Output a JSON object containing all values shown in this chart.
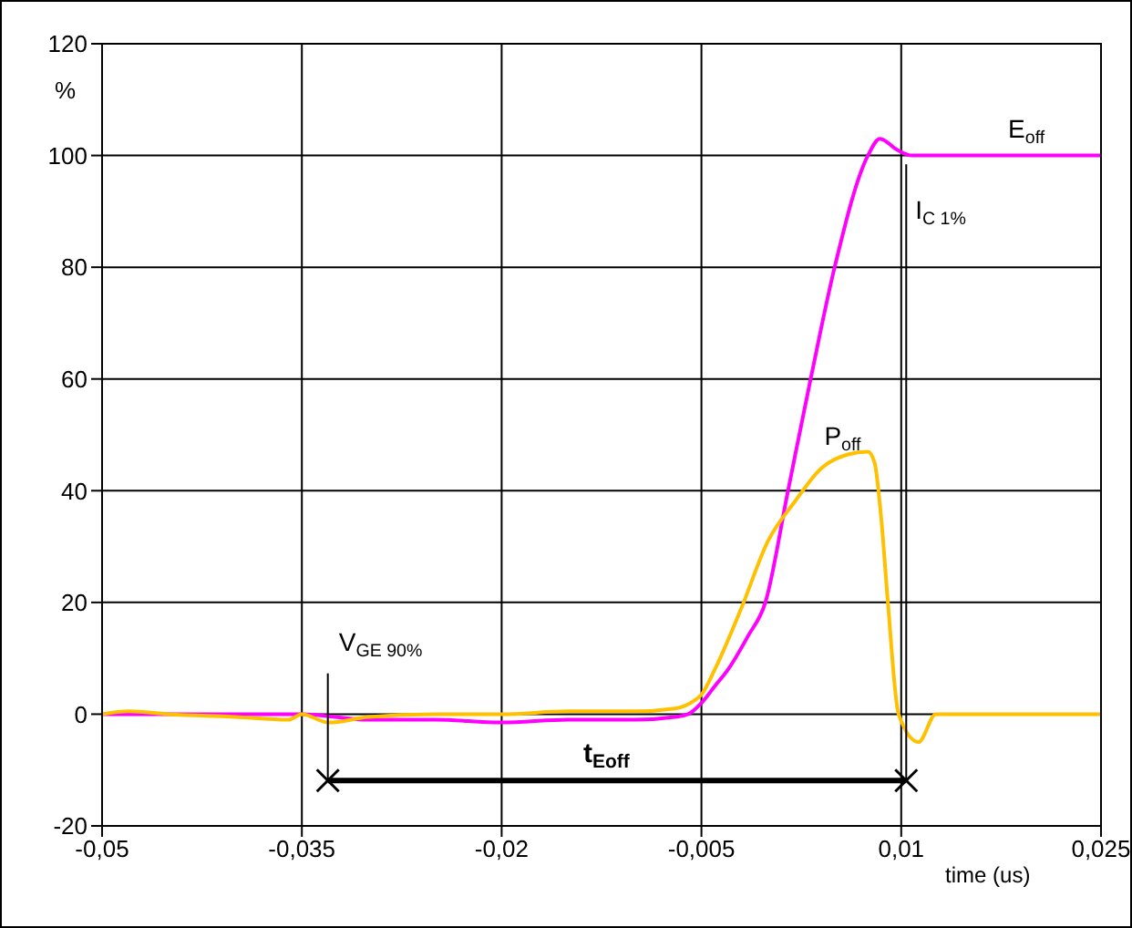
{
  "chart_data": {
    "type": "line",
    "xlabel": "time (us)",
    "ylabel": "%",
    "xlim": [
      -0.05,
      0.025
    ],
    "ylim": [
      -20,
      120
    ],
    "xticks": [
      {
        "value": -0.05,
        "label": "-0,05"
      },
      {
        "value": -0.035,
        "label": "-0,035"
      },
      {
        "value": -0.02,
        "label": "-0,02"
      },
      {
        "value": -0.005,
        "label": "-0,005"
      },
      {
        "value": 0.01,
        "label": "0,01"
      },
      {
        "value": 0.025,
        "label": "0,025"
      }
    ],
    "yticks": [
      -20,
      0,
      20,
      40,
      60,
      80,
      100,
      120
    ],
    "grid": true,
    "marker": "none",
    "line_style": "solid",
    "series": [
      {
        "color": "#ff00ff",
        "x": [
          -0.05,
          -0.04,
          -0.035,
          -0.03,
          -0.025,
          -0.02,
          -0.015,
          -0.01,
          -0.007,
          -0.006,
          -0.005,
          -0.004,
          -0.003,
          -0.0015,
          -0.0002,
          0.0015,
          0.0032,
          0.005,
          0.0075,
          0.0084,
          0.0097,
          0.0108,
          0.015,
          0.02,
          0.025
        ],
        "values": [
          0,
          0,
          0,
          -1,
          -1,
          -1.5,
          -1,
          -1,
          -0.5,
          0,
          2,
          5,
          8,
          14,
          20,
          40,
          60,
          80,
          100,
          103,
          101,
          100,
          100,
          100,
          100
        ]
      },
      {
        "color": "#ffc000",
        "x": [
          -0.05,
          -0.048,
          -0.045,
          -0.04,
          -0.036,
          -0.035,
          -0.033,
          -0.03,
          -0.025,
          -0.02,
          -0.015,
          -0.01,
          -0.007,
          -0.0055,
          -0.005,
          -0.004,
          -0.002,
          0,
          0.002,
          0.004,
          0.006,
          0.0075,
          0.008,
          0.0085,
          0.009,
          0.0098,
          0.0113,
          0.0126,
          0.015,
          0.02,
          0.025
        ],
        "values": [
          0,
          0.5,
          0,
          -0.5,
          -1,
          0,
          -1.5,
          -0.5,
          0,
          0,
          0.5,
          0.5,
          1,
          2.5,
          3.5,
          8,
          19,
          31,
          38,
          44,
          46.5,
          47,
          45,
          35,
          20,
          0,
          -5,
          0,
          0,
          0,
          0
        ]
      }
    ],
    "annotations": [
      "E$_{off}$",
      "I$_{C 1%}$",
      "P$_{off}$",
      "V$_{GE 90%}$",
      "t$_{Eoff}$"
    ]
  }
}
